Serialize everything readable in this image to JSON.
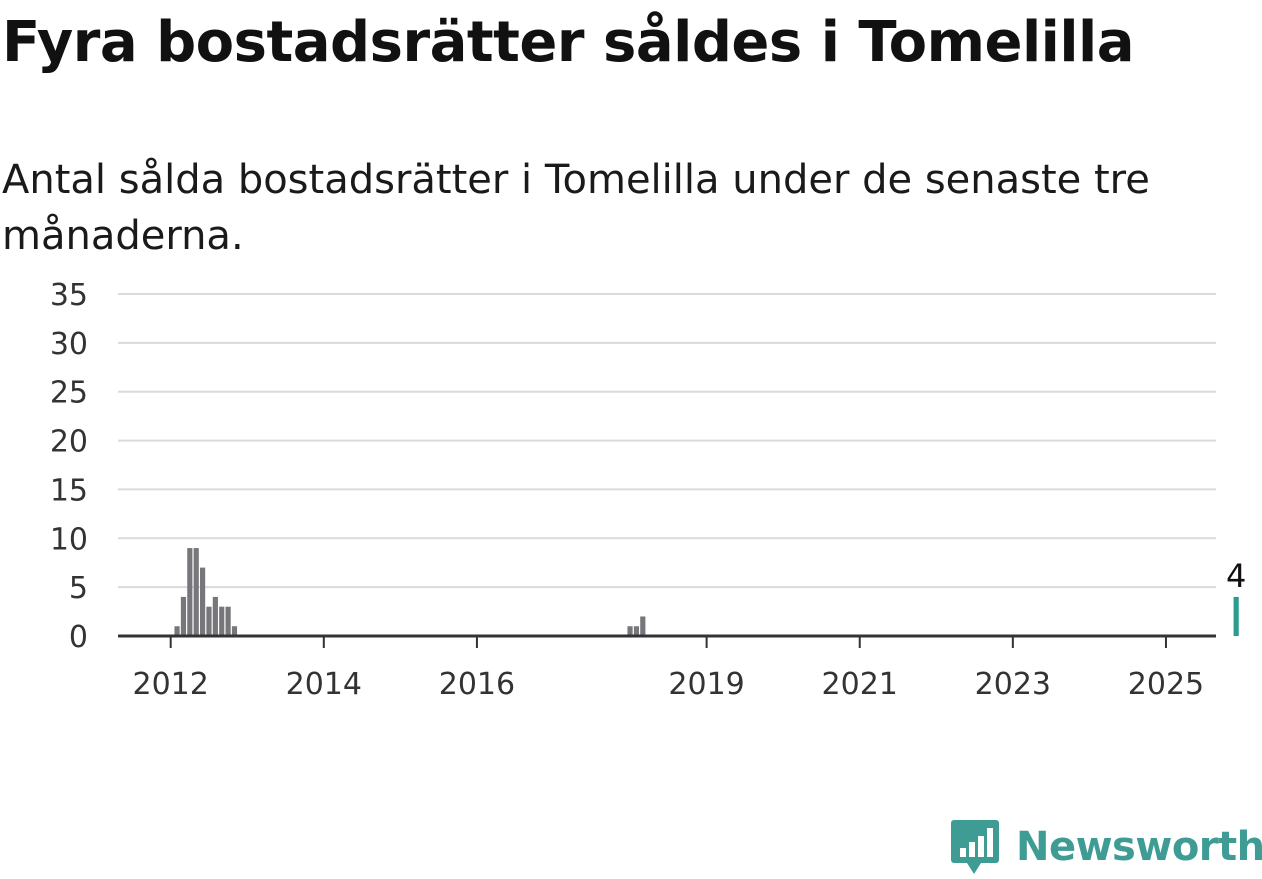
{
  "header": {
    "title": "Fyra bostadsrätter såldes i Tomelilla",
    "subtitle": "Antal sålda bostadsrätter i Tomelilla under de senaste tre månaderna."
  },
  "brand": {
    "name": "Newsworthy",
    "color": "#3f9c95",
    "icon": "newsworthy-logo-icon"
  },
  "chart_data": {
    "type": "bar",
    "x_start": "2011-07",
    "x_unit": "month",
    "values": [
      0,
      0,
      0,
      0,
      0,
      0,
      0,
      1,
      4,
      9,
      9,
      7,
      3,
      4,
      3,
      3,
      1,
      0,
      0,
      0,
      0,
      0,
      0,
      0,
      0,
      0,
      0,
      0,
      0,
      0,
      0,
      0,
      0,
      0,
      0,
      0,
      0,
      0,
      0,
      0,
      0,
      0,
      0,
      0,
      0,
      0,
      0,
      0,
      0,
      0,
      0,
      0,
      0,
      0,
      0,
      0,
      0,
      0,
      0,
      0,
      0,
      0,
      0,
      0,
      0,
      0,
      0,
      0,
      0,
      0,
      0,
      0,
      0,
      0,
      0,
      0,
      0,
      0,
      1,
      1,
      2,
      0,
      0,
      0,
      0,
      0,
      0,
      0,
      0,
      0,
      0,
      0,
      0,
      0,
      0,
      0,
      0,
      0,
      0,
      0,
      0,
      0,
      0,
      0,
      0,
      0,
      0,
      0,
      0,
      0,
      0,
      0,
      0,
      0,
      0,
      0,
      0,
      0,
      0,
      0,
      0,
      0,
      0,
      0,
      0,
      0,
      0,
      0,
      0,
      0,
      0,
      0,
      0,
      0,
      0,
      0,
      0,
      0,
      0,
      0,
      0,
      0,
      0,
      0,
      0,
      0,
      0,
      0,
      0,
      0,
      0,
      0,
      0,
      0,
      0,
      0,
      0,
      0,
      0,
      0,
      0,
      0,
      0,
      0,
      0,
      0,
      0,
      0,
      0,
      0,
      0,
      0,
      0,
      4
    ],
    "highlight": {
      "label": "4",
      "value": 4,
      "color": "#2a9d8f"
    },
    "bar_color": "#77767b",
    "ylim": [
      0,
      35
    ],
    "yticks": [
      0,
      5,
      10,
      15,
      20,
      25,
      30,
      35
    ],
    "xticks": [
      {
        "label": "2012",
        "date": "2012-01"
      },
      {
        "label": "2014",
        "date": "2014-01"
      },
      {
        "label": "2016",
        "date": "2016-01"
      },
      {
        "label": "2019",
        "date": "2019-01"
      },
      {
        "label": "2021",
        "date": "2021-01"
      },
      {
        "label": "2023",
        "date": "2023-01"
      },
      {
        "label": "2025",
        "date": "2025-01"
      }
    ],
    "grid": true,
    "title": "",
    "xlabel": "",
    "ylabel": ""
  }
}
